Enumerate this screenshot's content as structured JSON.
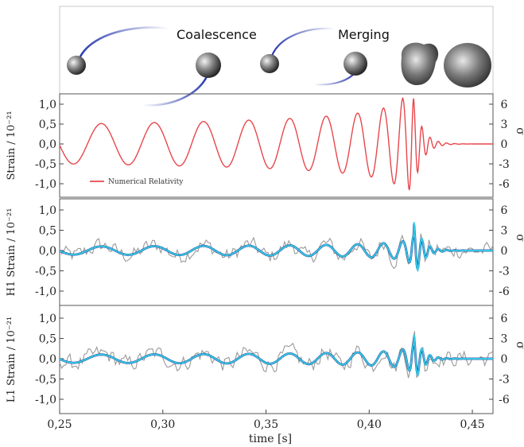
{
  "figure": {
    "stage_labels": [
      "Coalescence",
      "Merging"
    ],
    "xlabel": "time [s]",
    "right_axis_symbol": "σ"
  },
  "chart_data": [
    {
      "id": "numerical-relativity",
      "type": "line",
      "ylabel": "Strain / 10⁻²¹",
      "y2label": "σ",
      "xlim": [
        0.25,
        0.46
      ],
      "ylim": [
        -1.3,
        1.3
      ],
      "yticks": [
        "1,0",
        "0,5",
        "0,0",
        "-0,5",
        "-1,0"
      ],
      "y2ticks": [
        "6",
        "3",
        "0",
        "-3",
        "-6"
      ],
      "legend": [
        "Numerical Relativity"
      ],
      "series": [
        {
          "name": "Numerical Relativity",
          "color": "#e8474c",
          "kind": "template",
          "t_merge": 0.4215,
          "peak": 1.15,
          "amp_early": 0.5
        }
      ]
    },
    {
      "id": "h1",
      "type": "line",
      "ylabel": "H1 Strain / 10⁻²¹",
      "y2label": "σ",
      "xlim": [
        0.25,
        0.46
      ],
      "ylim": [
        -1.3,
        1.3
      ],
      "yticks": [
        "1,0",
        "0,5",
        "0,0",
        "-0,5",
        "-1,0"
      ],
      "y2ticks": [
        "6",
        "3",
        "0",
        "-3",
        "-6"
      ],
      "series": [
        {
          "color": "#9a9a9a",
          "kind": "noisy-data",
          "peak": 0.9,
          "noise": 0.17
        },
        {
          "color": "#1a2f8a",
          "kind": "reconstruction",
          "peak": 0.72
        },
        {
          "color": "#35c7e4",
          "kind": "reconstruction",
          "peak": 0.78
        }
      ]
    },
    {
      "id": "l1",
      "type": "line",
      "ylabel": "L1 Strain / 10⁻²¹",
      "y2label": "σ",
      "xlim": [
        0.25,
        0.46
      ],
      "ylim": [
        -1.3,
        1.3
      ],
      "yticks": [
        "1,0",
        "0,5",
        "0,0",
        "-0,5",
        "-1,0"
      ],
      "y2ticks": [
        "6",
        "3",
        "0",
        "-3",
        "-6"
      ],
      "xticks": [
        "0,25",
        "0,30",
        "0,35",
        "0,40",
        "0,45"
      ],
      "xtick_values": [
        0.25,
        0.3,
        0.35,
        0.4,
        0.45
      ],
      "series": [
        {
          "color": "#9a9a9a",
          "kind": "noisy-data",
          "peak": 0.85,
          "noise": 0.18
        },
        {
          "color": "#1a2f8a",
          "kind": "reconstruction",
          "peak": 0.6
        },
        {
          "color": "#35c7e4",
          "kind": "reconstruction",
          "peak": 0.66
        }
      ]
    }
  ]
}
